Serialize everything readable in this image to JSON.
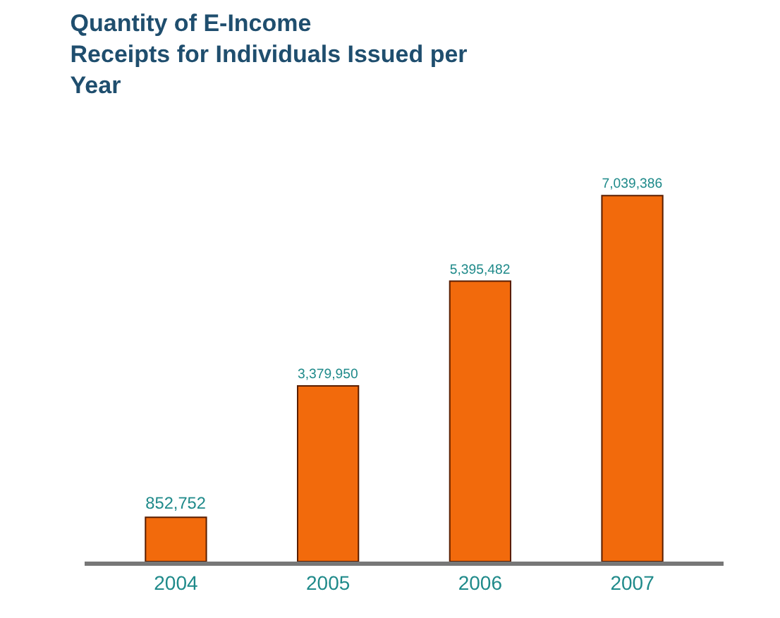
{
  "chart_data": {
    "type": "bar",
    "title": "Quantity of E-Income\nReceipts for Individuals Issued per\nYear",
    "categories": [
      "2004",
      "2005",
      "2006",
      "2007"
    ],
    "values": [
      852752,
      3379950,
      5395482,
      7039386
    ],
    "value_labels": [
      "852,752",
      "3,379,950",
      "5,395,482",
      "7,039,386"
    ],
    "color": "#f26a0c"
  }
}
